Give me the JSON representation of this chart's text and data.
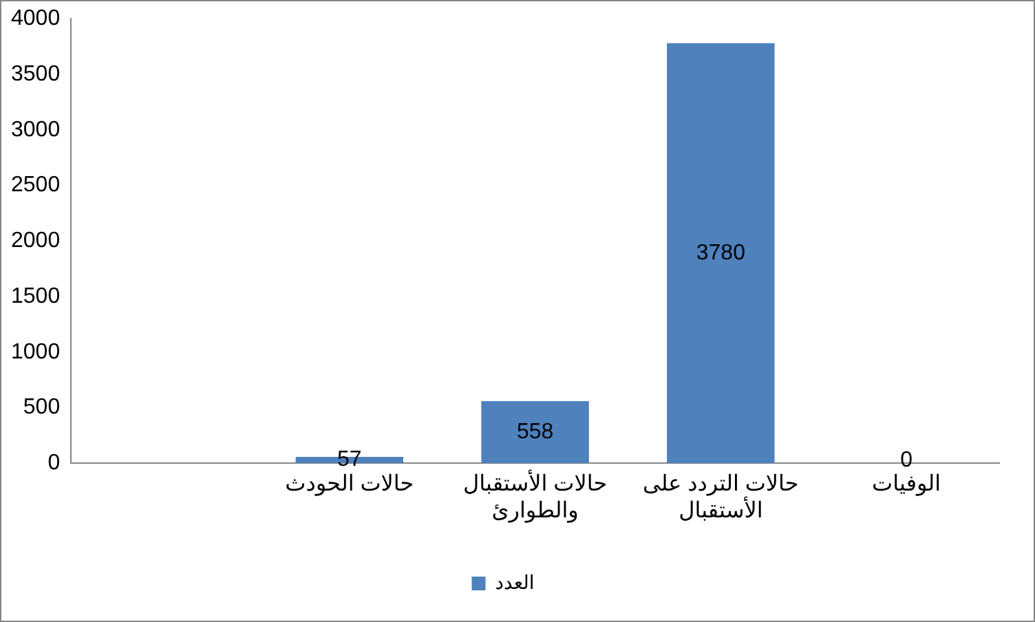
{
  "chart_data": {
    "type": "bar",
    "categories": [
      null,
      "حالات الحودث",
      "حالات الأستقبال والطوارئ",
      "حالات التردد على الأستقبال",
      "الوفيات"
    ],
    "series": [
      {
        "name": "العدد",
        "color": "#4f81bd",
        "values": [
          null,
          57,
          558,
          3780,
          0
        ]
      }
    ],
    "ylim": [
      0,
      4000
    ],
    "yticks": [
      0,
      500,
      1000,
      1500,
      2000,
      2500,
      3000,
      3500,
      4000
    ],
    "grid": false,
    "legend": "bottom",
    "data_labels": true
  }
}
